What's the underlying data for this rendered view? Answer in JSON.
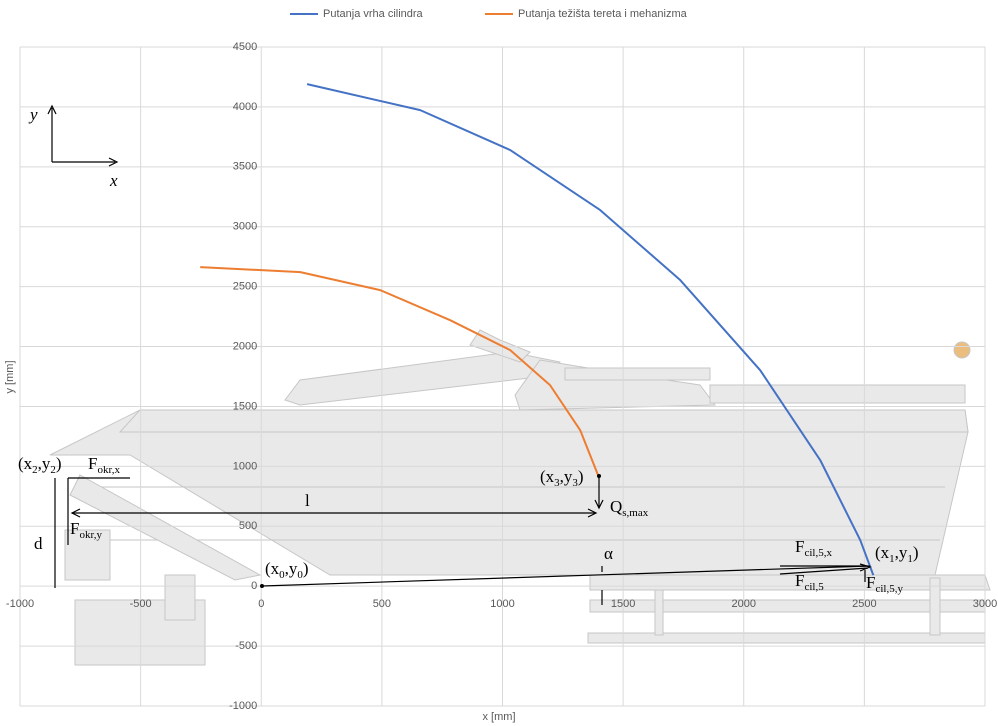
{
  "chart_data": {
    "type": "line",
    "x_label": "x [mm]",
    "y_label": "y [mm]",
    "xlim": [
      -1000,
      3000
    ],
    "xticks": [
      -1000,
      -500,
      0,
      500,
      1000,
      1500,
      2000,
      2500,
      3000
    ],
    "ylim": [
      -1000,
      4500
    ],
    "yticks": [
      -1000,
      -500,
      0,
      500,
      1000,
      1500,
      2000,
      2500,
      3000,
      3500,
      4000,
      4500
    ],
    "grid": true,
    "legend": "top",
    "series": [
      {
        "name": "Putanja vrha cilindra",
        "color": "#4472c4",
        "x": [
          190,
          659,
          1032,
          1405,
          1737,
          2068,
          2317,
          2483,
          2537
        ],
        "values": [
          4190,
          3973,
          3640,
          3139,
          2554,
          1803,
          1052,
          384,
          92
        ]
      },
      {
        "name": "Putanja težišta tereta i mehanizma",
        "color": "#ed7d31",
        "x": [
          -253,
          162,
          493,
          783,
          1032,
          1197,
          1322,
          1401
        ],
        "values": [
          2663,
          2621,
          2471,
          2220,
          1970,
          1678,
          1302,
          902
        ]
      }
    ],
    "annotations": [
      {
        "parts": [
          "(x",
          "2",
          ",y",
          "2",
          ")"
        ]
      },
      {
        "parts": [
          "F",
          "okr,x"
        ]
      },
      {
        "parts": [
          "F",
          "okr,y"
        ]
      },
      {
        "parts": [
          "d"
        ]
      },
      {
        "parts": [
          "l"
        ]
      },
      {
        "parts": [
          "(x",
          "3",
          ",y",
          "3",
          ")"
        ]
      },
      {
        "parts": [
          "Q",
          "s,max"
        ]
      },
      {
        "parts": [
          "α"
        ]
      },
      {
        "parts": [
          "(x",
          "0",
          ",y",
          "0",
          ")"
        ]
      },
      {
        "parts": [
          "F",
          "cil,5,x"
        ]
      },
      {
        "parts": [
          "(x",
          "1",
          ",y",
          "1",
          ")"
        ]
      },
      {
        "parts": [
          "F",
          "cil,5"
        ]
      },
      {
        "parts": [
          "F",
          "cil,5,y"
        ]
      },
      {
        "parts": [
          "y"
        ]
      },
      {
        "parts": [
          "x"
        ]
      }
    ]
  }
}
